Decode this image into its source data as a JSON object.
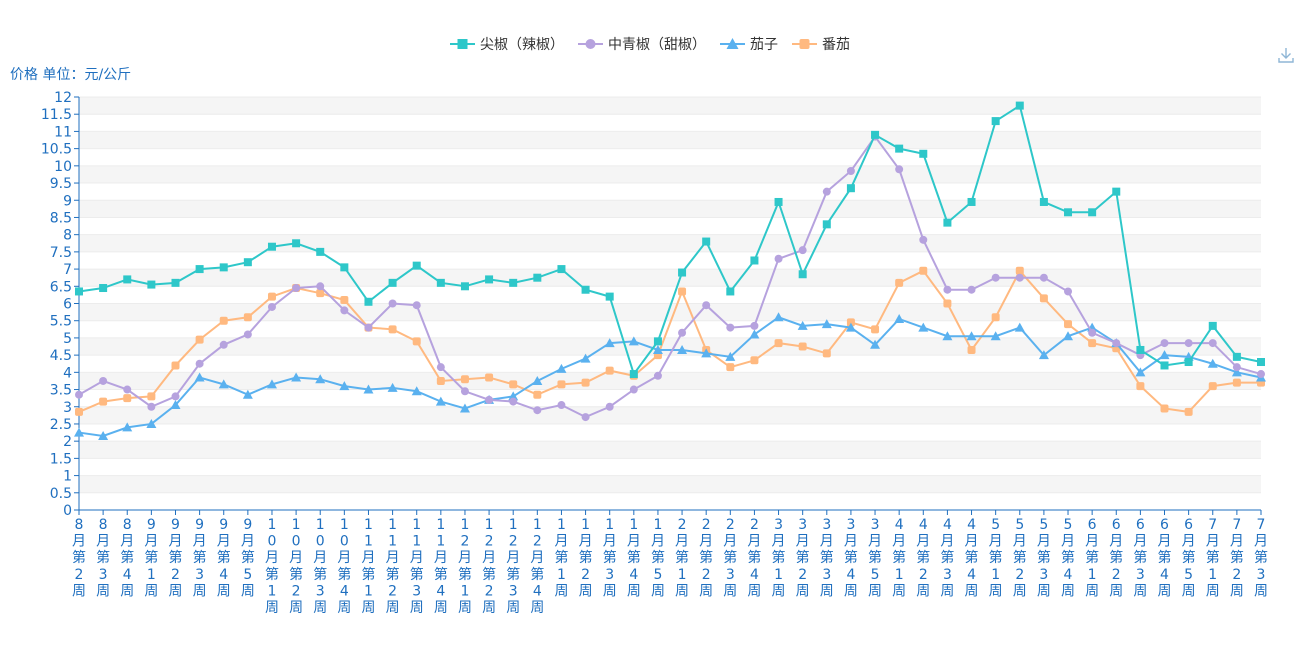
{
  "chart_data": {
    "type": "line",
    "y_unit_label": "价格 单位：元/公斤",
    "ylim": [
      0,
      12
    ],
    "ytick_step": 0.5,
    "grid": "horizontal-bands",
    "legend_position": "top-center",
    "categories": [
      "8月第2周",
      "8月第3周",
      "8月第4周",
      "9月第1周",
      "9月第2周",
      "9月第3周",
      "9月第4周",
      "9月第5周",
      "10月第1周",
      "10月第2周",
      "10月第3周",
      "10月第4周",
      "11月第1周",
      "11月第2周",
      "11月第3周",
      "11月第4周",
      "12月第1周",
      "12月第2周",
      "12月第3周",
      "12月第4周",
      "1月第1周",
      "1月第2周",
      "1月第3周",
      "1月第4周",
      "1月第5周",
      "2月第1周",
      "2月第2周",
      "2月第3周",
      "2月第4周",
      "3月第1周",
      "3月第2周",
      "3月第3周",
      "3月第4周",
      "3月第5周",
      "4月第1周",
      "4月第2周",
      "4月第3周",
      "4月第4周",
      "5月第1周",
      "5月第2周",
      "5月第3周",
      "5月第4周",
      "6月第1周",
      "6月第2周",
      "6月第3周",
      "6月第4周",
      "6月第5周",
      "7月第1周",
      "7月第2周",
      "7月第3周"
    ],
    "series": [
      {
        "name": "尖椒（辣椒）",
        "color": "#2ec7c9",
        "marker": "square",
        "values": [
          6.35,
          6.45,
          6.7,
          6.55,
          6.6,
          7.0,
          7.05,
          7.2,
          7.65,
          7.75,
          7.5,
          7.05,
          6.05,
          6.6,
          7.1,
          6.6,
          6.5,
          6.7,
          6.6,
          6.75,
          7.0,
          6.4,
          6.2,
          3.95,
          4.9,
          6.9,
          7.8,
          6.35,
          7.25,
          8.95,
          6.85,
          8.3,
          9.35,
          10.9,
          10.5,
          10.35,
          8.35,
          8.95,
          11.3,
          11.75,
          8.95,
          8.65,
          8.65,
          9.25,
          4.65,
          4.2,
          4.3,
          5.35,
          4.45,
          4.3
        ]
      },
      {
        "name": "中青椒（甜椒）",
        "color": "#b6a2de",
        "marker": "circle",
        "values": [
          3.35,
          3.75,
          3.5,
          3.0,
          3.3,
          4.25,
          4.8,
          5.1,
          5.9,
          6.45,
          6.5,
          5.8,
          5.3,
          6.0,
          5.95,
          4.15,
          3.45,
          3.2,
          3.15,
          2.9,
          3.05,
          2.7,
          3.0,
          3.5,
          3.9,
          5.15,
          5.95,
          5.3,
          5.35,
          7.3,
          7.55,
          9.25,
          9.85,
          10.85,
          9.9,
          7.85,
          6.4,
          6.4,
          6.75,
          6.75,
          6.75,
          6.35,
          5.15,
          4.85,
          4.5,
          4.85,
          4.85,
          4.85,
          4.15,
          3.95
        ]
      },
      {
        "name": "茄子",
        "color": "#5ab1ef",
        "marker": "triangle",
        "values": [
          2.25,
          2.15,
          2.4,
          2.5,
          3.05,
          3.85,
          3.65,
          3.35,
          3.65,
          3.85,
          3.8,
          3.6,
          3.5,
          3.55,
          3.45,
          3.15,
          2.95,
          3.2,
          3.3,
          3.75,
          4.1,
          4.4,
          4.85,
          4.9,
          4.65,
          4.65,
          4.55,
          4.45,
          5.1,
          5.6,
          5.35,
          5.4,
          5.3,
          4.8,
          5.55,
          5.3,
          5.05,
          5.05,
          5.05,
          5.3,
          4.5,
          5.05,
          5.3,
          4.85,
          4.0,
          4.5,
          4.45,
          4.25,
          4.0,
          3.85
        ]
      },
      {
        "name": "番茄",
        "color": "#ffb980",
        "marker": "rounded-square",
        "values": [
          2.85,
          3.15,
          3.25,
          3.3,
          4.2,
          4.95,
          5.5,
          5.6,
          6.2,
          6.45,
          6.3,
          6.1,
          5.3,
          5.25,
          4.9,
          3.75,
          3.8,
          3.85,
          3.65,
          3.35,
          3.65,
          3.7,
          4.05,
          3.9,
          4.5,
          6.35,
          4.65,
          4.15,
          4.35,
          4.85,
          4.75,
          4.55,
          5.45,
          5.25,
          6.6,
          6.95,
          6.0,
          4.65,
          5.6,
          6.95,
          6.15,
          5.4,
          4.85,
          4.7,
          3.6,
          2.95,
          2.85,
          3.6,
          3.7,
          3.7
        ]
      }
    ]
  },
  "icons": {
    "download": "download-icon"
  }
}
